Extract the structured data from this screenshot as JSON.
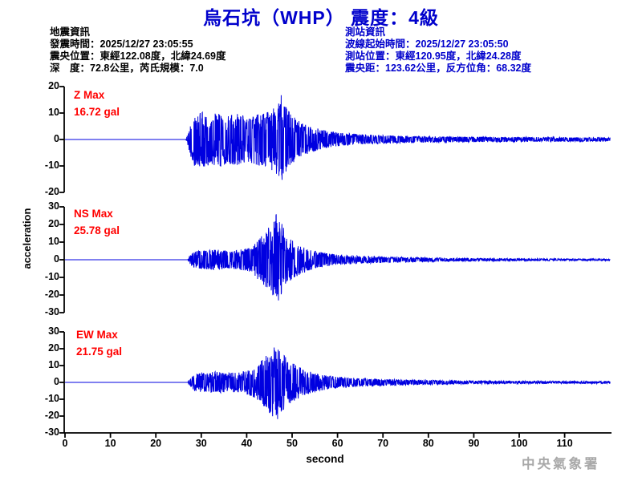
{
  "title": "烏石坑（WHP） 震度：4級",
  "info_left": {
    "heading": "地震資訊",
    "origin_time": "發震時間：2025/12/27 23:05:55",
    "epicenter": "震央位置：東經122.08度，北緯24.69度",
    "depth_magnitude": "深　度：72.8公里，芮氏規模：7.0"
  },
  "info_right": {
    "heading": "測站資訊",
    "wave_start_time": "波線起始時間：2025/12/27 23:05:50",
    "station_location": "測站位置：東經120.95度，北緯24.28度",
    "distance_azimuth": "震央距：123.62公里，反方位角：68.32度"
  },
  "watermark": "中央氣象署",
  "colors": {
    "title_blue": "#0000cc",
    "info_blue": "#0000cc",
    "trace_blue": "#0000e0",
    "max_red": "#ff0000",
    "axis_black": "#000000",
    "watermark_gray": "#a8a8a8"
  },
  "chart_data": {
    "type": "line",
    "description": "Three stacked seismogram traces (Z, NS, EW components) of ground acceleration vs time, shared x axis, no grid, legend absent",
    "xlabel": "second",
    "ylabel": "acceleration",
    "xlim": [
      0,
      120
    ],
    "x_ticks": [
      0,
      10,
      20,
      30,
      40,
      50,
      60,
      70,
      80,
      90,
      100,
      110
    ],
    "subplots": [
      {
        "id": "Z",
        "max_label": "Z Max",
        "max_value": "16.72 gal",
        "max_gal": 16.72,
        "peak_time": 47.6,
        "peak_sign": 1,
        "onset_time": 26.8,
        "ylim": [
          -20,
          20
        ],
        "y_ticks": [
          20,
          10,
          0,
          -10,
          -20
        ],
        "envelope": [
          [
            0,
            0
          ],
          [
            26.6,
            0
          ],
          [
            27,
            2
          ],
          [
            27.6,
            6
          ],
          [
            28.5,
            10
          ],
          [
            30,
            11
          ],
          [
            32,
            9.5
          ],
          [
            34,
            10.5
          ],
          [
            36,
            9
          ],
          [
            38,
            10
          ],
          [
            40,
            8.5
          ],
          [
            42,
            9.5
          ],
          [
            44,
            10.5
          ],
          [
            46,
            12
          ],
          [
            47,
            14.5
          ],
          [
            47.6,
            16.5
          ],
          [
            48.4,
            13
          ],
          [
            50,
            9
          ],
          [
            52,
            6.5
          ],
          [
            54,
            5
          ],
          [
            56,
            4
          ],
          [
            58,
            3.2
          ],
          [
            61,
            2.5
          ],
          [
            65,
            2
          ],
          [
            70,
            1.6
          ],
          [
            76,
            1.3
          ],
          [
            84,
            1.1
          ],
          [
            92,
            1.0
          ],
          [
            102,
            0.9
          ],
          [
            112,
            0.8
          ],
          [
            120,
            0.8
          ]
        ]
      },
      {
        "id": "NS",
        "max_label": "NS Max",
        "max_value": "25.78 gal",
        "max_gal": 25.78,
        "peak_time": 46.5,
        "peak_sign": 1,
        "onset_time": 27.0,
        "ylim": [
          -30,
          30
        ],
        "y_ticks": [
          30,
          20,
          10,
          0,
          -10,
          -20,
          -30
        ],
        "envelope": [
          [
            0,
            0
          ],
          [
            27,
            0
          ],
          [
            27.4,
            2
          ],
          [
            28.2,
            4.5
          ],
          [
            30,
            5.5
          ],
          [
            33,
            6
          ],
          [
            36,
            5
          ],
          [
            38,
            5.5
          ],
          [
            40,
            6.5
          ],
          [
            41.5,
            8
          ],
          [
            43,
            13
          ],
          [
            44.5,
            17
          ],
          [
            45.8,
            22
          ],
          [
            46.5,
            25.8
          ],
          [
            47.4,
            23
          ],
          [
            48.5,
            16
          ],
          [
            50,
            11
          ],
          [
            52,
            8
          ],
          [
            54,
            6
          ],
          [
            56,
            4.5
          ],
          [
            59,
            3.2
          ],
          [
            63,
            2.4
          ],
          [
            68,
            1.9
          ],
          [
            74,
            1.5
          ],
          [
            82,
            1.1
          ],
          [
            92,
            0.8
          ],
          [
            104,
            0.6
          ],
          [
            120,
            0.5
          ]
        ]
      },
      {
        "id": "EW",
        "max_label": "EW Max",
        "max_value": "21.75 gal",
        "max_gal": 21.75,
        "peak_time": 46.8,
        "peak_sign": -1,
        "onset_time": 27.0,
        "ylim": [
          -30,
          30
        ],
        "y_ticks": [
          30,
          20,
          10,
          0,
          -10,
          -20,
          -30
        ],
        "envelope": [
          [
            0,
            0
          ],
          [
            27,
            0
          ],
          [
            27.5,
            2.5
          ],
          [
            28.3,
            5
          ],
          [
            30,
            6
          ],
          [
            33,
            6.5
          ],
          [
            36,
            5.5
          ],
          [
            39,
            6.5
          ],
          [
            41,
            8
          ],
          [
            42.5,
            11
          ],
          [
            44,
            15
          ],
          [
            45.5,
            20
          ],
          [
            46.5,
            21.7
          ],
          [
            47.5,
            19
          ],
          [
            49,
            14
          ],
          [
            51,
            10
          ],
          [
            53,
            7.5
          ],
          [
            55,
            5.5
          ],
          [
            58,
            4
          ],
          [
            62,
            3
          ],
          [
            67,
            2.3
          ],
          [
            73,
            1.8
          ],
          [
            80,
            1.4
          ],
          [
            90,
            1.0
          ],
          [
            102,
            0.8
          ],
          [
            120,
            0.7
          ]
        ]
      }
    ]
  }
}
